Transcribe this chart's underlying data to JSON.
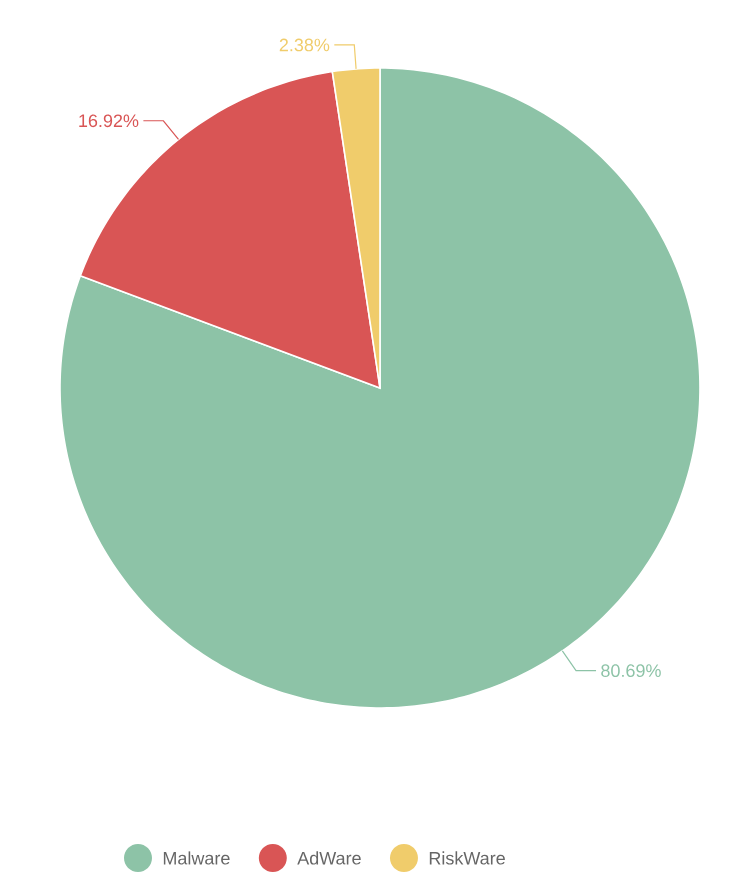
{
  "chart_data": {
    "type": "pie",
    "categories": [
      "Malware",
      "AdWare",
      "RiskWare"
    ],
    "values": [
      80.69,
      16.92,
      2.38
    ],
    "value_labels": [
      "80.69%",
      "16.92%",
      "2.38%"
    ],
    "colors": [
      "#8dc3a7",
      "#d95555",
      "#f0cc6b"
    ],
    "legend": "bottom"
  }
}
